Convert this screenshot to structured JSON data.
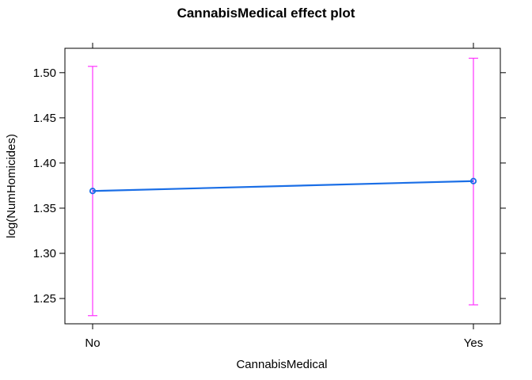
{
  "chart_data": {
    "type": "line",
    "title": "CannabisMedical effect plot",
    "xlabel": "CannabisMedical",
    "ylabel": "log(NumHomicides)",
    "categories": [
      "No",
      "Yes"
    ],
    "values": [
      1.369,
      1.38
    ],
    "lower": [
      1.231,
      1.243
    ],
    "upper": [
      1.507,
      1.516
    ],
    "ylim": [
      1.222,
      1.527
    ],
    "yticks": [
      1.25,
      1.3,
      1.35,
      1.4,
      1.45,
      1.5
    ],
    "ytick_labels": [
      "1.25",
      "1.30",
      "1.35",
      "1.40",
      "1.45",
      "1.50"
    ],
    "grid": false,
    "colors": {
      "line": "#1a6ee6",
      "error_bar": "#ff33ff",
      "frame": "#000000"
    }
  }
}
